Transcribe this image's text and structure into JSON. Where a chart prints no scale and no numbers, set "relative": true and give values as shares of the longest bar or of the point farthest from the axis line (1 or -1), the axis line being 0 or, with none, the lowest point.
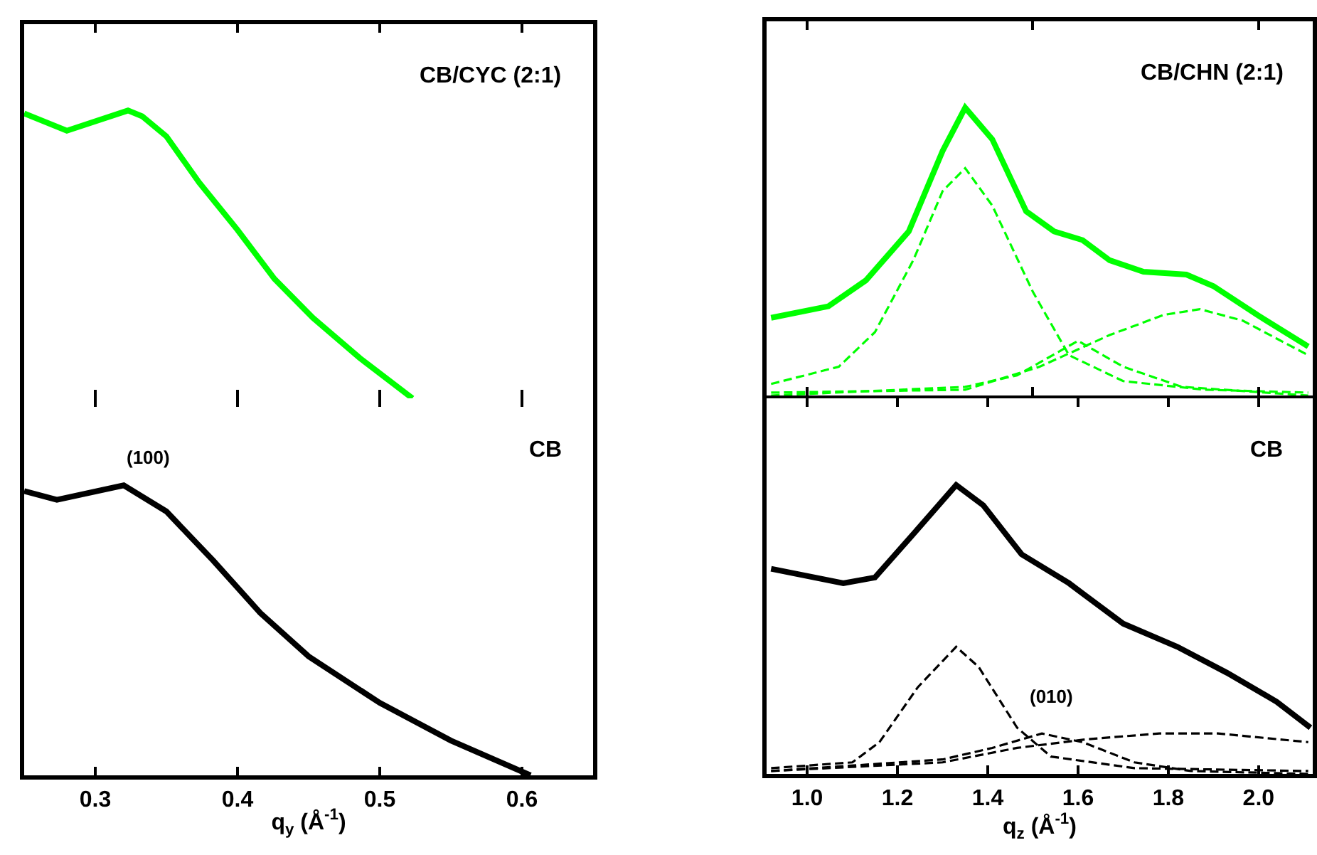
{
  "chart_data": [
    {
      "type": "line",
      "title": "CB/CYC (2:1)",
      "relative": true,
      "tick_labels": false,
      "xlim": [
        0.25,
        0.65
      ],
      "series": [
        {
          "color": "#00ff00",
          "x": [
            0.25,
            0.28,
            0.323,
            0.333,
            0.35,
            0.373,
            0.4,
            0.426,
            0.453,
            0.486,
            0.523
          ],
          "values": [
            0.99,
            0.93,
            1,
            0.98,
            0.91,
            0.75,
            0.585,
            0.415,
            0.28,
            0.14,
            0
          ]
        }
      ]
    },
    {
      "type": "line",
      "title": "CB/CHN (2:1)",
      "relative": true,
      "tick_labels": false,
      "xlim": [
        0.91,
        2.12
      ],
      "series": [
        {
          "color": "#00ff00",
          "line_style": "solid",
          "x": [
            0.92,
            1.047,
            1.13,
            1.225,
            1.3,
            1.35,
            1.41,
            1.485,
            1.547,
            1.61,
            1.67,
            1.745,
            1.84,
            1.9,
            1.997,
            2.11
          ],
          "values": [
            0.27,
            0.31,
            0.4,
            0.57,
            0.85,
            1,
            0.89,
            0.64,
            0.57,
            0.54,
            0.47,
            0.43,
            0.42,
            0.38,
            0.28,
            0.17
          ]
        },
        {
          "color": "#00ff00",
          "line_style": "dashed",
          "x": [
            0.92,
            1.07,
            1.15,
            1.235,
            1.3,
            1.35,
            1.41,
            1.5,
            1.58,
            1.7,
            1.88,
            2.11
          ],
          "values": [
            0.04,
            0.1,
            0.22,
            0.47,
            0.71,
            0.79,
            0.66,
            0.36,
            0.14,
            0.05,
            0.02,
            0.01
          ]
        },
        {
          "color": "#00ff00",
          "line_style": "dashed",
          "x": [
            0.92,
            1.35,
            1.465,
            1.6,
            1.7,
            1.83,
            2.11
          ],
          "values": [
            0,
            0.03,
            0.07,
            0.19,
            0.1,
            0.03,
            0
          ]
        },
        {
          "color": "#00ff00",
          "line_style": "dashed",
          "x": [
            0.92,
            1.35,
            1.515,
            1.67,
            1.79,
            1.87,
            1.965,
            2.11
          ],
          "values": [
            0.01,
            0.02,
            0.1,
            0.21,
            0.28,
            0.3,
            0.26,
            0.14
          ]
        }
      ]
    },
    {
      "type": "line",
      "title": "CB",
      "relative": true,
      "tick_labels": "x",
      "xlabel": "q$_{y}$ (Å$^{-1}$)",
      "xlim": [
        0.25,
        0.65
      ],
      "xticks": [
        0.3,
        0.4,
        0.5,
        0.6
      ],
      "annotations": [
        "(100)"
      ],
      "series": [
        {
          "color": "#000000",
          "x": [
            0.25,
            0.273,
            0.32,
            0.35,
            0.383,
            0.416,
            0.45,
            0.5,
            0.55,
            0.606
          ],
          "values": [
            0.98,
            0.95,
            1,
            0.91,
            0.74,
            0.56,
            0.41,
            0.25,
            0.12,
            0
          ]
        }
      ]
    },
    {
      "type": "line",
      "title": "CB",
      "relative": true,
      "tick_labels": "x",
      "xlabel": "q$_{z}$ (Å$^{-1}$)",
      "xlim": [
        0.91,
        2.12
      ],
      "xticks": [
        {
          "value": 1,
          "label": "1.0"
        },
        1.2,
        1.4,
        1.6,
        1.8,
        {
          "value": 2,
          "label": "2.0"
        }
      ],
      "annotations": [
        "(010)"
      ],
      "series": [
        {
          "color": "#000000",
          "line_style": "solid",
          "x": [
            0.92,
            1.08,
            1.15,
            1.235,
            1.33,
            1.39,
            1.475,
            1.58,
            1.7,
            1.82,
            1.93,
            2.04,
            2.115
          ],
          "values": [
            0.71,
            0.66,
            0.68,
            0.83,
            1,
            0.93,
            0.76,
            0.66,
            0.52,
            0.44,
            0.35,
            0.25,
            0.16
          ]
        },
        {
          "color": "#000000",
          "line_style": "dashed",
          "x": [
            0.92,
            1.1,
            1.16,
            1.245,
            1.33,
            1.38,
            1.465,
            1.54,
            1.725,
            2.11
          ],
          "values": [
            0.02,
            0.04,
            0.11,
            0.3,
            0.44,
            0.37,
            0.16,
            0.06,
            0.02,
            0.01
          ]
        },
        {
          "color": "#000000",
          "line_style": "dashed",
          "x": [
            0.92,
            1.3,
            1.41,
            1.52,
            1.61,
            1.725,
            1.85,
            2.11
          ],
          "values": [
            0.01,
            0.05,
            0.09,
            0.14,
            0.11,
            0.04,
            0.01,
            0
          ]
        },
        {
          "color": "#000000",
          "line_style": "dashed",
          "x": [
            0.92,
            1.3,
            1.465,
            1.62,
            1.78,
            1.91,
            2.11
          ],
          "values": [
            0.01,
            0.04,
            0.09,
            0.12,
            0.14,
            0.14,
            0.11
          ]
        }
      ]
    }
  ]
}
